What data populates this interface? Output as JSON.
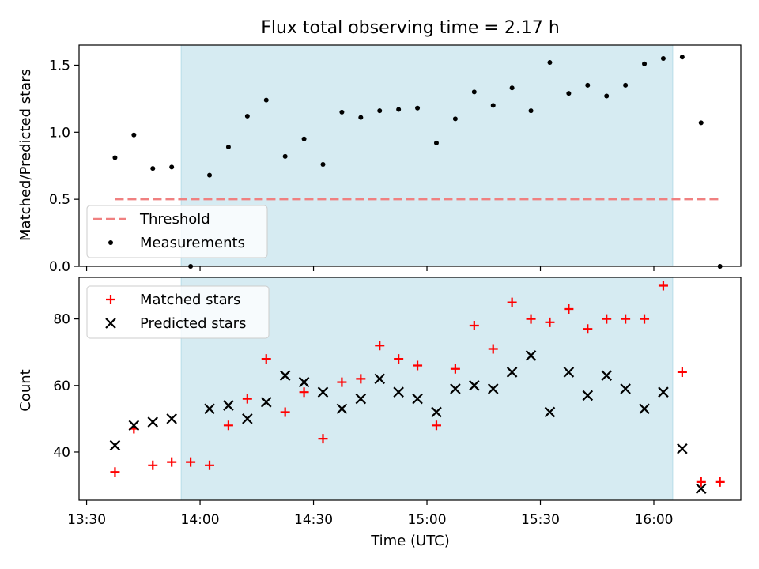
{
  "chart_data": [
    {
      "type": "scatter",
      "title": "Flux total observing time = 2.17 h",
      "ylabel": "Matched/Predicted stars",
      "xlabel": "",
      "ylim": [
        0,
        1.65
      ],
      "yticks": [
        0.0,
        0.5,
        1.0,
        1.5
      ],
      "ytick_labels": [
        "0.0",
        "0.5",
        "1.0",
        "1.5"
      ],
      "x_minutes_range": [
        -2,
        173
      ],
      "shaded_span_minutes": [
        25,
        155
      ],
      "shade_color": "#add8e6",
      "threshold": {
        "name": "Threshold",
        "value": 0.5,
        "x_start": 7.5,
        "x_end": 167.5,
        "color": "#f08080"
      },
      "series": [
        {
          "name": "Measurements",
          "color": "#000000",
          "x": [
            7.5,
            12.5,
            17.5,
            22.5,
            27.5,
            32.5,
            37.5,
            42.5,
            47.5,
            52.5,
            57.5,
            62.5,
            67.5,
            72.5,
            77.5,
            82.5,
            87.5,
            92.5,
            97.5,
            102.5,
            107.5,
            112.5,
            117.5,
            122.5,
            127.5,
            132.5,
            137.5,
            142.5,
            147.5,
            152.5,
            157.5,
            162.5,
            167.5
          ],
          "y": [
            0.81,
            0.98,
            0.73,
            0.74,
            0.0,
            0.68,
            0.89,
            1.12,
            1.24,
            0.82,
            0.95,
            0.76,
            1.15,
            1.11,
            1.16,
            1.17,
            1.18,
            0.92,
            1.1,
            1.3,
            1.2,
            1.33,
            1.16,
            1.52,
            1.29,
            1.35,
            1.27,
            1.35,
            1.51,
            1.55,
            1.56,
            1.07,
            0.0
          ]
        }
      ],
      "legend": {
        "position": "lower-left",
        "entries": [
          "Threshold",
          "Measurements"
        ]
      }
    },
    {
      "type": "scatter",
      "title": "",
      "ylabel": "Count",
      "xlabel": "Time (UTC)",
      "ylim": [
        25.5,
        92.5
      ],
      "yticks": [
        40,
        60,
        80
      ],
      "ytick_labels": [
        "40",
        "60",
        "80"
      ],
      "x_minutes_range": [
        -2,
        173
      ],
      "xticks_minutes": [
        0,
        30,
        60,
        90,
        120,
        150
      ],
      "xtick_labels": [
        "13:30",
        "14:00",
        "14:30",
        "15:00",
        "15:30",
        "16:00"
      ],
      "shaded_span_minutes": [
        25,
        155
      ],
      "shade_color": "#add8e6",
      "series": [
        {
          "name": "Matched stars",
          "marker": "plus",
          "color": "#ff0000",
          "x": [
            7.5,
            12.5,
            17.5,
            22.5,
            27.5,
            32.5,
            37.5,
            42.5,
            47.5,
            52.5,
            57.5,
            62.5,
            67.5,
            72.5,
            77.5,
            82.5,
            87.5,
            92.5,
            97.5,
            102.5,
            107.5,
            112.5,
            117.5,
            122.5,
            127.5,
            132.5,
            137.5,
            142.5,
            147.5,
            152.5,
            157.5,
            162.5,
            167.5
          ],
          "y": [
            34,
            47,
            36,
            37,
            37,
            36,
            48,
            56,
            68,
            52,
            58,
            44,
            61,
            62,
            72,
            68,
            66,
            48,
            65,
            78,
            71,
            85,
            80,
            79,
            83,
            77,
            80,
            80,
            80,
            90,
            64,
            31,
            31
          ]
        },
        {
          "name": "Predicted stars",
          "marker": "x",
          "color": "#000000",
          "x": [
            7.5,
            12.5,
            17.5,
            22.5,
            32.5,
            37.5,
            42.5,
            47.5,
            52.5,
            57.5,
            62.5,
            67.5,
            72.5,
            77.5,
            82.5,
            87.5,
            92.5,
            97.5,
            102.5,
            107.5,
            112.5,
            117.5,
            122.5,
            127.5,
            132.5,
            137.5,
            142.5,
            147.5,
            152.5,
            157.5,
            162.5
          ],
          "y": [
            42,
            48,
            49,
            50,
            53,
            54,
            50,
            55,
            63,
            61,
            58,
            53,
            56,
            62,
            58,
            56,
            52,
            59,
            60,
            59,
            64,
            69,
            52,
            64,
            57,
            63,
            59,
            53,
            58,
            41,
            29
          ]
        }
      ],
      "legend": {
        "position": "top-left",
        "entries": [
          "Matched stars",
          "Predicted stars"
        ]
      }
    }
  ]
}
